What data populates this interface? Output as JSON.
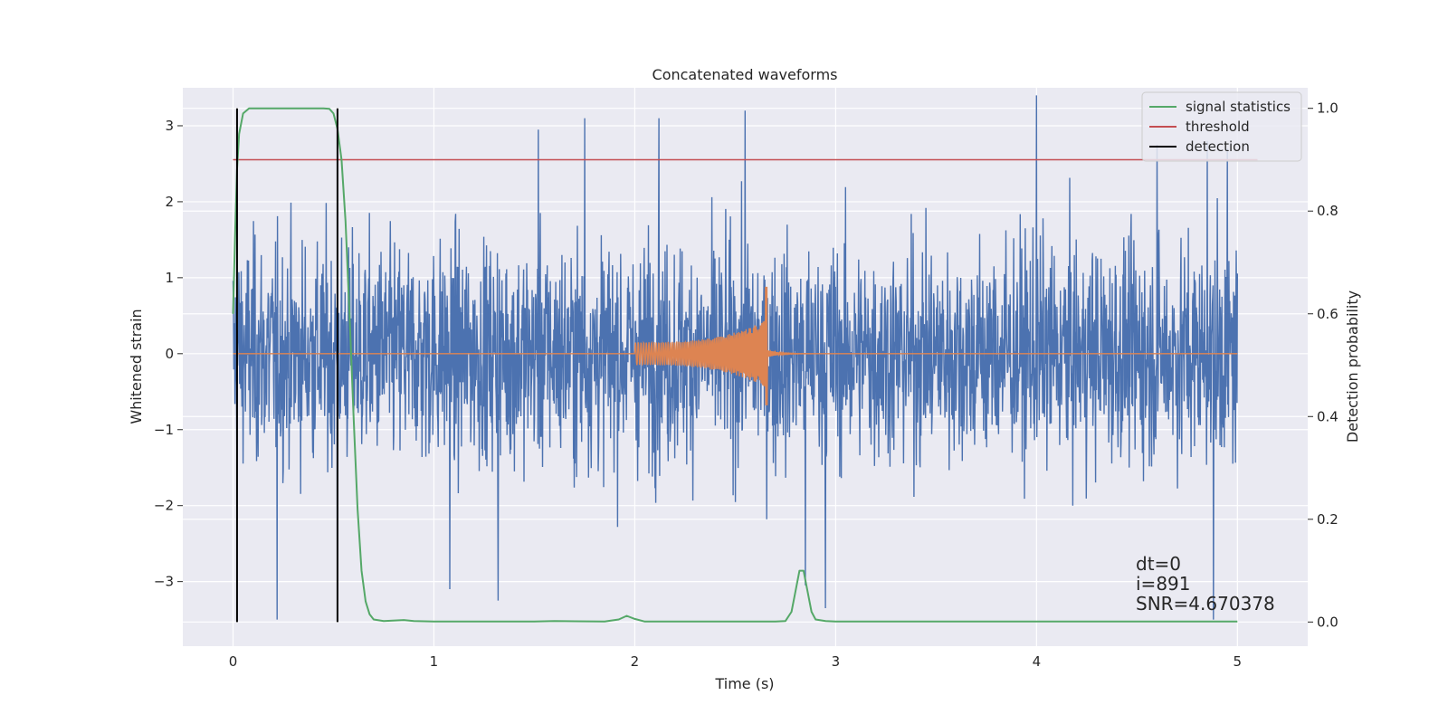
{
  "chart_data": {
    "type": "line",
    "title": "Concatenated waveforms",
    "xlabel": "Time (s)",
    "ylabel": "Whitened strain",
    "ylabel_right": "Detection probability",
    "xlim": [
      -0.25,
      5.35
    ],
    "ylim": [
      -3.85,
      3.5
    ],
    "ylim_right": [
      -0.047,
      1.04
    ],
    "x_ticks": [
      0,
      1,
      2,
      3,
      4,
      5
    ],
    "x_tick_labels": [
      "0",
      "1",
      "2",
      "3",
      "4",
      "5"
    ],
    "y_ticks": [
      -3,
      -2,
      -1,
      0,
      1,
      2,
      3
    ],
    "y_tick_labels": [
      "−3",
      "−2",
      "−1",
      "0",
      "1",
      "2",
      "3"
    ],
    "y_right_ticks": [
      0.0,
      0.2,
      0.4,
      0.6,
      0.8,
      1.0
    ],
    "y_right_tick_labels": [
      "0.0",
      "0.2",
      "0.4",
      "0.6",
      "0.8",
      "1.0"
    ],
    "grid": true,
    "legend_position": "top-right",
    "series": [
      {
        "name": "signal statistics",
        "axis": "right",
        "color": "#55a868",
        "x": [
          0.0,
          0.01,
          0.02,
          0.03,
          0.05,
          0.08,
          0.12,
          0.2,
          0.3,
          0.4,
          0.45,
          0.48,
          0.5,
          0.52,
          0.54,
          0.56,
          0.58,
          0.6,
          0.62,
          0.64,
          0.66,
          0.68,
          0.7,
          0.75,
          0.85,
          0.9,
          1.0,
          1.5,
          1.6,
          1.85,
          1.92,
          1.96,
          2.0,
          2.05,
          2.1,
          2.5,
          2.7,
          2.75,
          2.78,
          2.8,
          2.82,
          2.84,
          2.86,
          2.88,
          2.9,
          2.95,
          3.0,
          3.5,
          4.0,
          4.5,
          5.0
        ],
        "y": [
          0.6,
          0.75,
          0.88,
          0.95,
          0.99,
          1.0,
          1.0,
          1.0,
          1.0,
          1.0,
          1.0,
          0.999,
          0.99,
          0.96,
          0.9,
          0.78,
          0.6,
          0.4,
          0.22,
          0.1,
          0.04,
          0.015,
          0.005,
          0.002,
          0.004,
          0.002,
          0.001,
          0.001,
          0.002,
          0.001,
          0.005,
          0.012,
          0.006,
          0.001,
          0.001,
          0.001,
          0.001,
          0.002,
          0.02,
          0.06,
          0.1,
          0.1,
          0.06,
          0.02,
          0.005,
          0.002,
          0.001,
          0.001,
          0.001,
          0.001,
          0.001
        ]
      },
      {
        "name": "threshold",
        "axis": "right",
        "color": "#c44e52",
        "x": [
          0.0,
          5.1
        ],
        "y": [
          0.9,
          0.9
        ]
      },
      {
        "name": "detection",
        "axis": "right",
        "color": "#000000",
        "x_lines": [
          0.02,
          0.52
        ],
        "y_range": [
          0.0,
          1.0
        ]
      },
      {
        "axis": "left",
        "color": "#4c72b0",
        "x_range": [
          0.0,
          5.0
        ],
        "noise_std": 0.72,
        "extremes": [
          {
            "x": 0.22,
            "y": -3.5
          },
          {
            "x": 0.52,
            "y": -3.5
          },
          {
            "x": 1.08,
            "y": -3.1
          },
          {
            "x": 1.32,
            "y": -3.25
          },
          {
            "x": 1.52,
            "y": 2.95
          },
          {
            "x": 1.75,
            "y": 3.1
          },
          {
            "x": 2.12,
            "y": 3.1
          },
          {
            "x": 2.55,
            "y": 3.2
          },
          {
            "x": 2.85,
            "y": -3.05
          },
          {
            "x": 2.95,
            "y": -3.35
          },
          {
            "x": 4.0,
            "y": 3.4
          },
          {
            "x": 4.6,
            "y": 2.75
          },
          {
            "x": 4.85,
            "y": 2.8
          },
          {
            "x": 4.88,
            "y": -3.5
          },
          {
            "x": 4.95,
            "y": 2.7
          }
        ]
      },
      {
        "axis": "left",
        "color": "#dd8452",
        "x_range": [
          0.0,
          5.0
        ],
        "chirp_start": 2.0,
        "chirp_end": 2.66,
        "amplitude_start": 0.15,
        "amplitude_peak": 0.88,
        "amplitude_min": -0.68,
        "ringdown_end": 2.98
      }
    ],
    "annotations": [
      "dt=0",
      "i=891",
      "SNR=4.670378"
    ]
  }
}
